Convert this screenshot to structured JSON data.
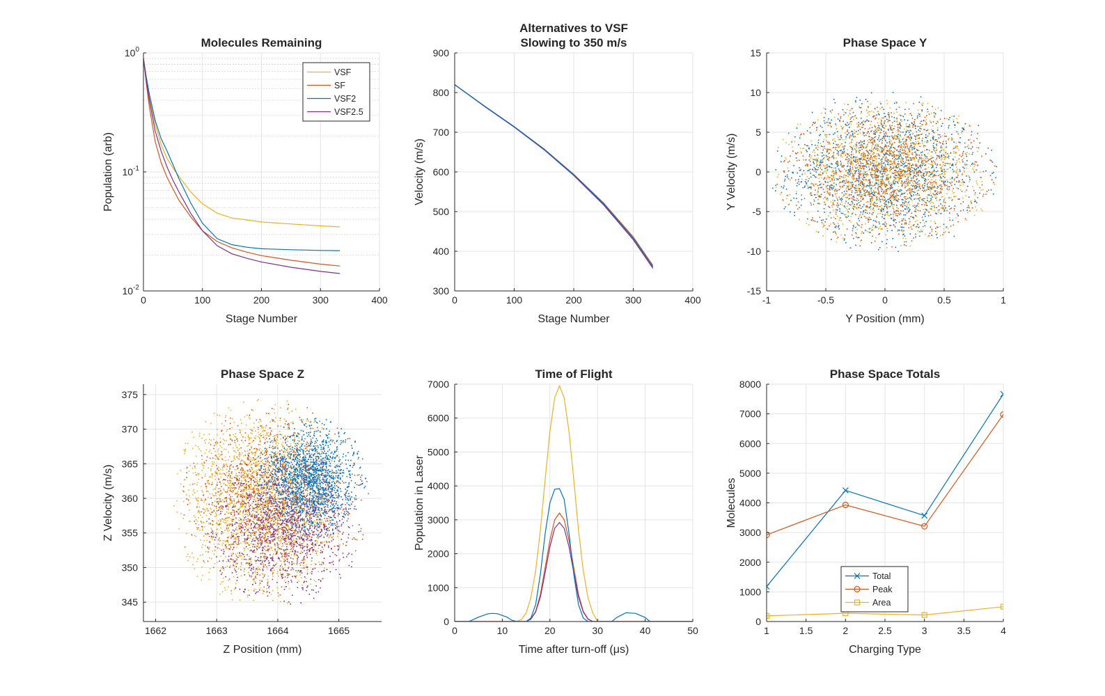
{
  "chart_data": [
    {
      "id": "p1",
      "type": "line",
      "title": [
        "Molecules Remaining"
      ],
      "xlabel": "Stage Number",
      "ylabel": "Population (arb)",
      "yscale": "log",
      "xlim": [
        0,
        400
      ],
      "ylim": [
        0.01,
        1
      ],
      "xticks": [
        0,
        100,
        200,
        300,
        400
      ],
      "yticks": [
        {
          "v": 0.01,
          "base": "10",
          "exp": "-2"
        },
        {
          "v": 0.1,
          "base": "10",
          "exp": "-1"
        },
        {
          "v": 1,
          "base": "10",
          "exp": "0"
        }
      ],
      "grid": true,
      "legend": "top-right",
      "series": [
        {
          "name": "VSF",
          "color": "#EDB120",
          "x": [
            0,
            5,
            10,
            20,
            30,
            40,
            50,
            60,
            80,
            100,
            125,
            150,
            175,
            200,
            250,
            300,
            333
          ],
          "y": [
            0.9,
            0.6,
            0.42,
            0.25,
            0.17,
            0.13,
            0.108,
            0.092,
            0.068,
            0.054,
            0.045,
            0.041,
            0.0395,
            0.038,
            0.0365,
            0.0352,
            0.0345
          ]
        },
        {
          "name": "SF",
          "color": "#D95319",
          "x": [
            0,
            5,
            10,
            20,
            30,
            40,
            50,
            60,
            80,
            100,
            125,
            150,
            175,
            200,
            250,
            300,
            333
          ],
          "y": [
            0.9,
            0.55,
            0.35,
            0.18,
            0.12,
            0.09,
            0.072,
            0.058,
            0.042,
            0.032,
            0.026,
            0.023,
            0.0212,
            0.0198,
            0.0181,
            0.0168,
            0.0162
          ]
        },
        {
          "name": "VSF2",
          "color": "#0072BD",
          "x": [
            0,
            5,
            10,
            20,
            30,
            40,
            50,
            60,
            80,
            100,
            125,
            150,
            175,
            200,
            250,
            300,
            333
          ],
          "y": [
            0.9,
            0.62,
            0.45,
            0.27,
            0.19,
            0.15,
            0.115,
            0.088,
            0.055,
            0.037,
            0.0275,
            0.0245,
            0.0233,
            0.0226,
            0.0222,
            0.0219,
            0.0218
          ]
        },
        {
          "name": "VSF2.5",
          "color": "#7E2F8E",
          "x": [
            0,
            5,
            10,
            20,
            30,
            40,
            50,
            60,
            80,
            100,
            125,
            150,
            175,
            200,
            250,
            300,
            333
          ],
          "y": [
            0.9,
            0.58,
            0.4,
            0.22,
            0.15,
            0.11,
            0.085,
            0.068,
            0.045,
            0.032,
            0.024,
            0.0205,
            0.0188,
            0.0175,
            0.0158,
            0.0146,
            0.014
          ]
        }
      ]
    },
    {
      "id": "p2",
      "type": "line",
      "title": [
        "Alternatives to VSF",
        "Slowing to 350 m/s"
      ],
      "xlabel": "Stage Number",
      "ylabel": "Velocity (m/s)",
      "xlim": [
        0,
        400
      ],
      "ylim": [
        300,
        900
      ],
      "xticks": [
        0,
        100,
        200,
        300,
        400
      ],
      "yticks": [
        300,
        400,
        500,
        600,
        700,
        800,
        900
      ],
      "grid": true,
      "series": [
        {
          "color": "#EDB120",
          "x": [
            0,
            50,
            100,
            150,
            200,
            250,
            300,
            333
          ],
          "y": [
            820,
            766,
            714,
            657,
            592,
            519,
            432,
            360
          ]
        },
        {
          "color": "#D95319",
          "x": [
            0,
            50,
            100,
            150,
            200,
            250,
            300,
            333
          ],
          "y": [
            820,
            766,
            714,
            658,
            594,
            522,
            436,
            364
          ]
        },
        {
          "color": "#7E2F8E",
          "x": [
            0,
            50,
            100,
            150,
            200,
            250,
            300,
            333
          ],
          "y": [
            820,
            765,
            713,
            656,
            591,
            517,
            429,
            357
          ]
        },
        {
          "color": "#0072BD",
          "x": [
            0,
            50,
            100,
            150,
            200,
            250,
            300,
            333
          ],
          "y": [
            820,
            766,
            714,
            657,
            593,
            520,
            433,
            361
          ]
        }
      ]
    },
    {
      "id": "p3",
      "type": "scatter",
      "title": [
        "Phase Space Y"
      ],
      "xlabel": "Y Position (mm)",
      "ylabel": "Y Velocity (m/s)",
      "xlim": [
        -1,
        1
      ],
      "ylim": [
        -15,
        15
      ],
      "xticks": [
        -1,
        -0.5,
        0,
        0.5,
        1
      ],
      "yticks": [
        -15,
        -10,
        -5,
        0,
        5,
        10,
        15
      ],
      "grid": true,
      "series": [
        {
          "color": "#0072BD",
          "center": [
            0,
            0
          ],
          "radius": [
            0.97,
            10.3
          ],
          "count": 1400
        },
        {
          "color": "#D95319",
          "center": [
            0,
            0
          ],
          "radius": [
            0.93,
            9.6
          ],
          "count": 1300
        },
        {
          "color": "#EDB120",
          "center": [
            0,
            0
          ],
          "radius": [
            0.95,
            9.8
          ],
          "count": 1300
        }
      ]
    },
    {
      "id": "p4",
      "type": "scatter",
      "title": [
        "Phase Space Z"
      ],
      "xlabel": "Z Position (mm)",
      "ylabel": "Z Velocity (m/s)",
      "xlim": [
        1661.8,
        1665.7
      ],
      "ylim": [
        342.2,
        376.5
      ],
      "xticks": [
        1662,
        1663,
        1664,
        1665
      ],
      "yticks": [
        345,
        350,
        355,
        360,
        365,
        370,
        375
      ],
      "grid": true,
      "series": [
        {
          "color": "#EDB120",
          "center": [
            1663.7,
            359.5
          ],
          "radius": [
            1.45,
            15.5
          ],
          "count": 2200
        },
        {
          "color": "#D95319",
          "center": [
            1664.0,
            360.0
          ],
          "radius": [
            1.6,
            14.0
          ],
          "count": 1200
        },
        {
          "color": "#7E2F8E",
          "center": [
            1664.1,
            356.0
          ],
          "radius": [
            1.3,
            11.5
          ],
          "count": 1200
        },
        {
          "color": "#0072BD",
          "center": [
            1664.55,
            362.8
          ],
          "radius": [
            0.9,
            9.0
          ],
          "count": 1500
        }
      ]
    },
    {
      "id": "p5",
      "type": "line",
      "title": [
        "Time of Flight"
      ],
      "xlabel": "Time after turn-off (μs)",
      "ylabel": "Population in Laser",
      "xlim": [
        0,
        50
      ],
      "ylim": [
        0,
        7000
      ],
      "xticks": [
        0,
        10,
        20,
        30,
        40,
        50
      ],
      "yticks": [
        0,
        1000,
        2000,
        3000,
        4000,
        5000,
        6000,
        7000
      ],
      "grid": true,
      "series": [
        {
          "color": "#EDB120",
          "x": [
            0,
            13,
            14,
            15,
            16,
            17,
            18,
            19,
            20,
            21,
            22,
            23,
            24,
            25,
            26,
            27,
            28,
            29,
            30,
            50
          ],
          "y": [
            0,
            0,
            60,
            250,
            700,
            1500,
            2700,
            4200,
            5600,
            6600,
            6950,
            6600,
            5600,
            4200,
            2700,
            1500,
            700,
            250,
            0,
            0
          ]
        },
        {
          "color": "#D95319",
          "x": [
            0,
            15,
            16,
            17,
            18,
            19,
            20,
            21,
            22,
            23,
            24,
            25,
            26,
            27,
            28,
            29,
            50
          ],
          "y": [
            0,
            0,
            80,
            300,
            800,
            1600,
            2400,
            3000,
            3200,
            3000,
            2400,
            1600,
            800,
            300,
            80,
            0,
            0
          ]
        },
        {
          "color": "#7E2F8E",
          "x": [
            0,
            15,
            16,
            17,
            18,
            19,
            20,
            21,
            22,
            23,
            24,
            25,
            26,
            27,
            28,
            29,
            50
          ],
          "y": [
            0,
            0,
            70,
            280,
            720,
            1450,
            2200,
            2750,
            2920,
            2750,
            2200,
            1450,
            720,
            280,
            70,
            0,
            0
          ]
        },
        {
          "color": "#0072BD",
          "x": [
            0,
            3,
            5,
            7,
            8,
            9,
            11,
            12,
            13,
            14,
            15,
            16,
            17,
            18,
            19,
            20,
            21,
            22,
            23,
            24,
            25,
            26,
            27,
            28,
            33,
            34,
            36,
            38,
            40,
            41,
            50
          ],
          "y": [
            0,
            0,
            130,
            230,
            240,
            230,
            130,
            40,
            0,
            0,
            0,
            100,
            500,
            1400,
            2600,
            3500,
            3900,
            3920,
            3600,
            2600,
            1400,
            500,
            100,
            0,
            0,
            120,
            260,
            240,
            120,
            0,
            0
          ]
        }
      ]
    },
    {
      "id": "p6",
      "type": "line",
      "title": [
        "Phase Space Totals"
      ],
      "xlabel": "Charging Type",
      "ylabel": "Molecules",
      "xlim": [
        1,
        4
      ],
      "ylim": [
        0,
        8000
      ],
      "xticks": [
        1,
        1.5,
        2,
        2.5,
        3,
        3.5,
        4
      ],
      "yticks": [
        0,
        1000,
        2000,
        3000,
        4000,
        5000,
        6000,
        7000,
        8000
      ],
      "grid": true,
      "legend": "bottom-center",
      "series": [
        {
          "name": "Total",
          "color": "#0072BD",
          "marker": "x",
          "x": [
            1,
            2,
            3,
            4
          ],
          "y": [
            1180,
            4420,
            3570,
            7670
          ]
        },
        {
          "name": "Peak",
          "color": "#D95319",
          "marker": "o",
          "x": [
            1,
            2,
            3,
            4
          ],
          "y": [
            2920,
            3930,
            3210,
            6980
          ]
        },
        {
          "name": "Area",
          "color": "#EDB120",
          "marker": "s",
          "x": [
            1,
            2,
            3,
            4
          ],
          "y": [
            190,
            280,
            220,
            500
          ]
        }
      ]
    }
  ]
}
